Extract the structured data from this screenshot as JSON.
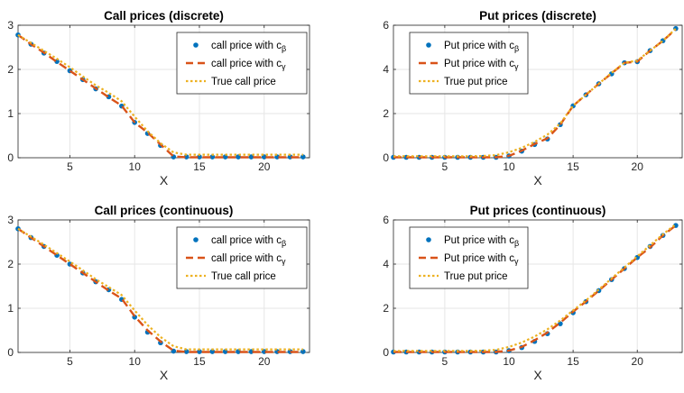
{
  "colors": {
    "series_beta": "#0072BD",
    "series_gamma": "#D95319",
    "series_true": "#EDB120",
    "grid": "#e6e6e6",
    "axis": "#262626"
  },
  "chart_data": [
    {
      "type": "line",
      "title": "Call prices (discrete)",
      "xlabel": "X",
      "ylabel": "",
      "xlim": [
        1,
        23.5
      ],
      "ylim": [
        0,
        3
      ],
      "xticks": [
        5,
        10,
        15,
        20
      ],
      "yticks": [
        0,
        1,
        2,
        3
      ],
      "grid": true,
      "legend": "top-right",
      "x": [
        1,
        2,
        3,
        4,
        5,
        6,
        7,
        8,
        9,
        10,
        11,
        12,
        13,
        14,
        15,
        16,
        17,
        18,
        19,
        20,
        21,
        22,
        23
      ],
      "series": [
        {
          "name": "call price with c_β",
          "marker": "dot",
          "values": [
            2.78,
            2.57,
            2.37,
            2.18,
            1.97,
            1.77,
            1.56,
            1.38,
            1.17,
            0.8,
            0.55,
            0.28,
            0.02,
            0.02,
            0.02,
            0.02,
            0.02,
            0.02,
            0.02,
            0.02,
            0.02,
            0.02,
            0.02
          ]
        },
        {
          "name": "call price with c_γ",
          "marker": "dash",
          "values": [
            2.78,
            2.57,
            2.38,
            2.17,
            1.97,
            1.77,
            1.57,
            1.37,
            1.18,
            0.8,
            0.57,
            0.3,
            0.03,
            0.01,
            0.01,
            0.01,
            0.01,
            0.01,
            0.01,
            0.01,
            0.01,
            0.01,
            0.01
          ]
        },
        {
          "name": "True call price",
          "marker": "dotted",
          "values": [
            2.78,
            2.6,
            2.42,
            2.24,
            2.05,
            1.84,
            1.64,
            1.47,
            1.28,
            0.93,
            0.6,
            0.33,
            0.12,
            0.07,
            0.07,
            0.07,
            0.07,
            0.07,
            0.07,
            0.07,
            0.07,
            0.07,
            0.07
          ]
        }
      ]
    },
    {
      "type": "line",
      "title": "Put prices (discrete)",
      "xlabel": "X",
      "ylabel": "",
      "xlim": [
        1,
        23.5
      ],
      "ylim": [
        0,
        6
      ],
      "xticks": [
        5,
        10,
        15,
        20
      ],
      "yticks": [
        0,
        2,
        4,
        6
      ],
      "grid": true,
      "legend": "top-left",
      "x": [
        1,
        2,
        3,
        4,
        5,
        6,
        7,
        8,
        9,
        10,
        11,
        12,
        13,
        14,
        15,
        16,
        17,
        18,
        19,
        20,
        21,
        22,
        23
      ],
      "series": [
        {
          "name": "Put price with c_β",
          "marker": "dot",
          "values": [
            0.02,
            0.02,
            0.02,
            0.02,
            0.02,
            0.02,
            0.02,
            0.02,
            0.02,
            0.08,
            0.3,
            0.6,
            0.85,
            1.5,
            2.35,
            2.85,
            3.35,
            3.8,
            4.3,
            4.35,
            4.85,
            5.3,
            5.85
          ]
        },
        {
          "name": "Put price with c_γ",
          "marker": "dash",
          "values": [
            0.02,
            0.02,
            0.02,
            0.02,
            0.02,
            0.02,
            0.02,
            0.02,
            0.02,
            0.08,
            0.32,
            0.62,
            0.88,
            1.5,
            2.35,
            2.85,
            3.35,
            3.82,
            4.3,
            4.35,
            4.85,
            5.3,
            5.82
          ]
        },
        {
          "name": "True put price",
          "marker": "dotted",
          "values": [
            0.07,
            0.07,
            0.07,
            0.07,
            0.07,
            0.07,
            0.07,
            0.08,
            0.12,
            0.25,
            0.45,
            0.72,
            1.05,
            1.55,
            2.35,
            2.85,
            3.35,
            3.85,
            4.3,
            4.4,
            4.85,
            5.3,
            5.85
          ]
        }
      ]
    },
    {
      "type": "line",
      "title": "Call prices (continuous)",
      "xlabel": "X",
      "ylabel": "",
      "xlim": [
        1,
        23.5
      ],
      "ylim": [
        0,
        3
      ],
      "xticks": [
        5,
        10,
        15,
        20
      ],
      "yticks": [
        0,
        1,
        2,
        3
      ],
      "grid": true,
      "legend": "top-right",
      "x": [
        1,
        2,
        3,
        4,
        5,
        6,
        7,
        8,
        9,
        10,
        11,
        12,
        13,
        14,
        15,
        16,
        17,
        18,
        19,
        20,
        21,
        22,
        23
      ],
      "series": [
        {
          "name": "call price with c_β",
          "marker": "dot",
          "values": [
            2.8,
            2.6,
            2.4,
            2.2,
            2.0,
            1.8,
            1.6,
            1.42,
            1.2,
            0.8,
            0.46,
            0.22,
            0.03,
            0.02,
            0.02,
            0.02,
            0.02,
            0.02,
            0.02,
            0.02,
            0.02,
            0.02,
            0.02
          ]
        },
        {
          "name": "call price with c_γ",
          "marker": "dash",
          "values": [
            2.8,
            2.6,
            2.4,
            2.2,
            2.0,
            1.8,
            1.6,
            1.4,
            1.22,
            0.82,
            0.5,
            0.25,
            0.04,
            0.01,
            0.01,
            0.01,
            0.01,
            0.01,
            0.01,
            0.01,
            0.01,
            0.01,
            0.01
          ]
        },
        {
          "name": "True call price",
          "marker": "dotted",
          "values": [
            2.8,
            2.62,
            2.44,
            2.25,
            2.06,
            1.86,
            1.66,
            1.48,
            1.3,
            0.95,
            0.62,
            0.35,
            0.14,
            0.07,
            0.07,
            0.07,
            0.07,
            0.07,
            0.07,
            0.07,
            0.07,
            0.07,
            0.07
          ]
        }
      ]
    },
    {
      "type": "line",
      "title": "Put prices (continuous)",
      "xlabel": "X",
      "ylabel": "",
      "xlim": [
        1,
        23.5
      ],
      "ylim": [
        0,
        6
      ],
      "xticks": [
        5,
        10,
        15,
        20
      ],
      "yticks": [
        0,
        2,
        4,
        6
      ],
      "grid": true,
      "legend": "top-left",
      "x": [
        1,
        2,
        3,
        4,
        5,
        6,
        7,
        8,
        9,
        10,
        11,
        12,
        13,
        14,
        15,
        16,
        17,
        18,
        19,
        20,
        21,
        22,
        23
      ],
      "series": [
        {
          "name": "Put price with c_β",
          "marker": "dot",
          "values": [
            0.02,
            0.02,
            0.02,
            0.02,
            0.02,
            0.02,
            0.02,
            0.02,
            0.02,
            0.08,
            0.22,
            0.5,
            0.85,
            1.3,
            1.8,
            2.3,
            2.8,
            3.3,
            3.8,
            4.3,
            4.8,
            5.3,
            5.75
          ]
        },
        {
          "name": "Put price with c_γ",
          "marker": "dash",
          "values": [
            0.02,
            0.02,
            0.02,
            0.02,
            0.02,
            0.02,
            0.02,
            0.02,
            0.02,
            0.08,
            0.25,
            0.55,
            0.9,
            1.35,
            1.85,
            2.3,
            2.8,
            3.3,
            3.8,
            4.3,
            4.75,
            5.3,
            5.75
          ]
        },
        {
          "name": "True put price",
          "marker": "dotted",
          "values": [
            0.07,
            0.07,
            0.07,
            0.07,
            0.07,
            0.07,
            0.07,
            0.08,
            0.12,
            0.25,
            0.45,
            0.72,
            1.05,
            1.45,
            1.9,
            2.35,
            2.85,
            3.35,
            3.85,
            4.35,
            4.85,
            5.35,
            5.8
          ]
        }
      ]
    }
  ]
}
